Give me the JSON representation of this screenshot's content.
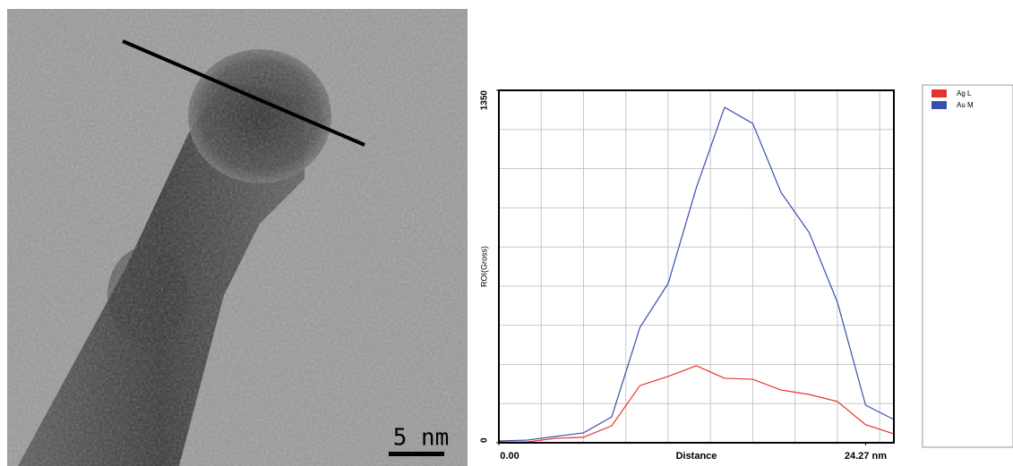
{
  "image": {
    "scale_bar": "5 nm"
  },
  "chart_data": {
    "type": "line",
    "xlabel": "Distance",
    "ylabel": "ROI(Gross)",
    "x": [
      0,
      1.867,
      3.734,
      5.601,
      7.468,
      9.335,
      11.202,
      13.069,
      14.936,
      16.803,
      18.67,
      20.537,
      22.404,
      24.27,
      26.138
    ],
    "series": [
      {
        "name": "Ag L",
        "color": "#e8322e",
        "values": [
          3,
          3,
          17,
          21,
          65,
          219,
          254,
          295,
          247,
          243,
          202,
          185,
          158,
          69,
          34
        ]
      },
      {
        "name": "Au M",
        "color": "#3a4fa8",
        "values": [
          7,
          10,
          24,
          38,
          99,
          442,
          610,
          977,
          1285,
          1223,
          959,
          805,
          538,
          144,
          89
        ]
      }
    ],
    "xlim": [
      0,
      26.14
    ],
    "ylim": [
      0,
      1350
    ],
    "xticks": [
      {
        "value": 0,
        "label": "0.00"
      },
      {
        "value": 24.27,
        "label": "24.27 nm"
      }
    ],
    "yticks": [
      0,
      1350
    ],
    "xgrid": [
      2.8,
      5.6,
      8.4,
      11.2,
      14.0,
      16.8,
      19.6,
      22.4,
      25.2
    ],
    "ygrid": [
      150,
      300,
      450,
      600,
      750,
      900,
      1050,
      1200
    ],
    "grid": true,
    "legend": "right"
  }
}
